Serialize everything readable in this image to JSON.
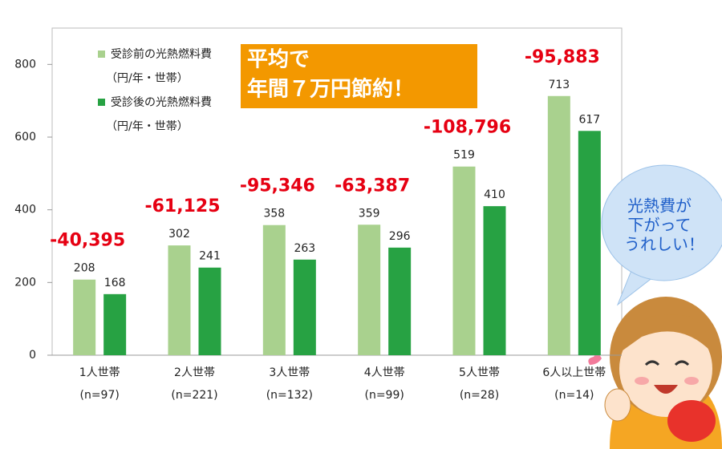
{
  "chart_data": {
    "type": "bar",
    "categories": [
      "1人世帯",
      "2人世帯",
      "3人世帯",
      "4人世帯",
      "5人世帯",
      "6人以上世帯"
    ],
    "category_notes": [
      "(n=97)",
      "(n=221)",
      "(n=132)",
      "(n=99)",
      "(n=28)",
      "(n=14)"
    ],
    "series": [
      {
        "name": "受診前の光熱燃料費",
        "unit": "（円/年・世帯）",
        "color": "#a9d18e",
        "values": [
          208,
          302,
          358,
          359,
          519,
          713
        ]
      },
      {
        "name": "受診後の光熱燃料費",
        "unit": "（円/年・世帯）",
        "color": "#27a243",
        "values": [
          168,
          241,
          263,
          296,
          410,
          617
        ]
      }
    ],
    "annotations": [
      "-40,395",
      "-61,125",
      "-95,346",
      "-63,387",
      "-108,796",
      "-95,883"
    ],
    "callout": [
      "平均で",
      "年間７万円節約！"
    ],
    "bubble": [
      "光熱費が",
      "下がって",
      "うれしい！"
    ],
    "ylim": [
      0,
      900
    ],
    "yticks": [
      0,
      200,
      400,
      600,
      800
    ],
    "grid": false
  }
}
